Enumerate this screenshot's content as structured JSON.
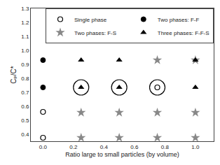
{
  "chart_data": {
    "type": "scatter",
    "xlabel": "Ratio large to small particles (by volume)",
    "ylabel": "Cₚ/C*",
    "xlim": [
      -0.08,
      1.12
    ],
    "ylim": [
      0.35,
      1.3
    ],
    "xticks": [
      {
        "value": 0.0,
        "label": "0.0"
      },
      0.2,
      0.4,
      0.6,
      0.8,
      {
        "value": 1.0,
        "label": "1.0"
      }
    ],
    "yticks": [
      0.4,
      0.5,
      0.6,
      0.7,
      0.8,
      0.9,
      {
        "value": 1.0,
        "label": "1.0"
      },
      1.1,
      1.2,
      1.3
    ],
    "grid": false,
    "legend": "upper right",
    "series": [
      {
        "name": "Single phase",
        "marker": "circle-open",
        "color": "black",
        "x": [
          0.0,
          0.0
        ],
        "values": [
          0.375,
          0.56
        ]
      },
      {
        "name": "Two phases: F-F",
        "marker": "circle",
        "color": "black",
        "x": [
          0.0,
          0.0
        ],
        "values": [
          0.735,
          0.93
        ]
      },
      {
        "name": "Two phases: F-S",
        "marker": "star",
        "color": "#888888",
        "x": [
          0.25,
          0.5,
          0.75,
          1.0,
          0.25,
          0.5,
          0.75,
          1.0
        ],
        "values": [
          0.375,
          0.375,
          0.375,
          0.375,
          0.555,
          0.555,
          0.555,
          0.555
        ]
      },
      {
        "marker": "star",
        "color": "#888888",
        "x": [
          0.75,
          1.0
        ],
        "values": [
          0.93,
          0.93
        ]
      },
      {
        "name": "Three phases: F-F-S",
        "marker": "triangle-up",
        "color": "black",
        "x": [
          0.25,
          0.5,
          1.0
        ],
        "values": [
          0.93,
          0.93,
          0.93
        ]
      },
      {
        "marker": "triangle-up",
        "color": "black",
        "x": [
          0.25,
          0.5,
          1.0
        ],
        "values": [
          0.735,
          0.735,
          0.735
        ]
      },
      {
        "marker": "circle-open",
        "color": "black",
        "x": [
          0.75
        ],
        "values": [
          0.735
        ]
      },
      {
        "marker": "ring",
        "color": "black",
        "x": [
          0.25,
          0.5,
          0.75
        ],
        "values": [
          0.735,
          0.735,
          0.735
        ]
      }
    ]
  }
}
